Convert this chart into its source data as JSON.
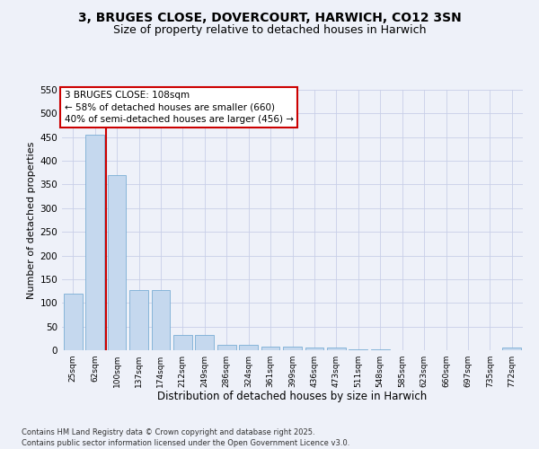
{
  "title": "3, BRUGES CLOSE, DOVERCOURT, HARWICH, CO12 3SN",
  "subtitle": "Size of property relative to detached houses in Harwich",
  "xlabel": "Distribution of detached houses by size in Harwich",
  "ylabel": "Number of detached properties",
  "categories": [
    "25sqm",
    "62sqm",
    "100sqm",
    "137sqm",
    "174sqm",
    "212sqm",
    "249sqm",
    "286sqm",
    "324sqm",
    "361sqm",
    "399sqm",
    "436sqm",
    "473sqm",
    "511sqm",
    "548sqm",
    "585sqm",
    "623sqm",
    "660sqm",
    "697sqm",
    "735sqm",
    "772sqm"
  ],
  "values": [
    120,
    455,
    370,
    128,
    128,
    33,
    33,
    12,
    12,
    8,
    8,
    5,
    5,
    2,
    2,
    0,
    0,
    0,
    0,
    0,
    5
  ],
  "bar_color": "#c5d8ee",
  "bar_edge_color": "#7aaed4",
  "red_line_x": 1.5,
  "annotation_text": "3 BRUGES CLOSE: 108sqm\n← 58% of detached houses are smaller (660)\n40% of semi-detached houses are larger (456) →",
  "ylim_max": 550,
  "yticks": [
    0,
    50,
    100,
    150,
    200,
    250,
    300,
    350,
    400,
    450,
    500,
    550
  ],
  "background_color": "#eef1f9",
  "grid_color": "#c8cfe8",
  "footer": "Contains HM Land Registry data © Crown copyright and database right 2025.\nContains public sector information licensed under the Open Government Licence v3.0."
}
